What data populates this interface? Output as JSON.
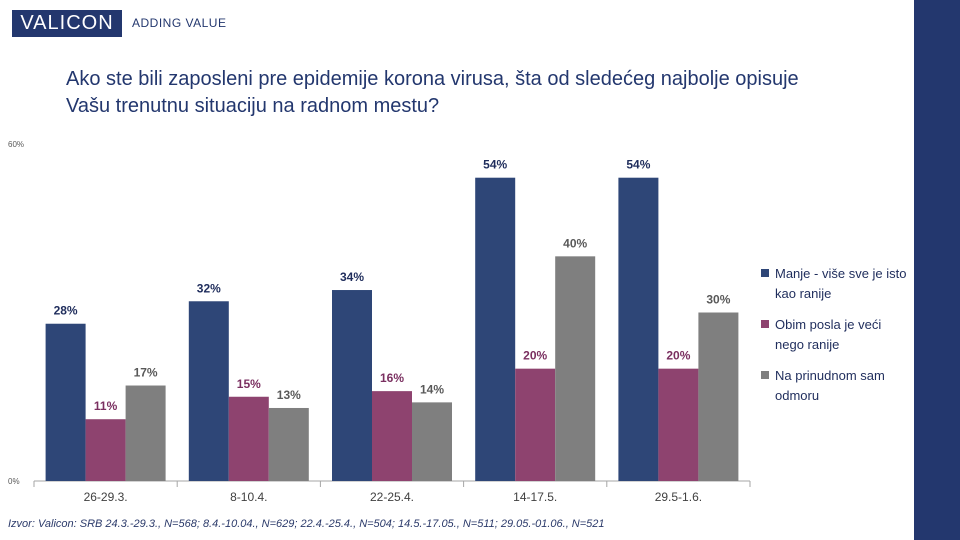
{
  "header": {
    "brand": "VALICON",
    "tagline": "ADDING VALUE"
  },
  "title_lines": [
    "Ako ste bili zaposleni pre epidemije korona virusa, šta od sledećeg najbolje opisuje",
    "Vašu trenutnu situaciju na radnom mestu?"
  ],
  "source": "Izvor: Valicon: SRB 24.3.-29.3., N=568; 8.4.-10.04., N=629; 22.4.-25.4., N=504; 14.5.-17.05., N=511; 29.05.-01.06., N=521",
  "colors": {
    "brand": "#23376e",
    "series": [
      "#2e4677",
      "#8e436f",
      "#7f7f7f"
    ],
    "label": [
      "#1f2d5c",
      "#7a2f60",
      "#595959"
    ]
  },
  "chart_data": {
    "type": "bar",
    "categories": [
      "26-29.3.",
      "8-10.4.",
      "22-25.4.",
      "14-17.5.",
      "29.5-1.6."
    ],
    "series": [
      {
        "name": "Manje - više sve je isto kao ranije",
        "values": [
          28,
          32,
          34,
          54,
          54
        ],
        "labels": [
          "28%",
          "32%",
          "34%",
          "54%",
          "54%"
        ]
      },
      {
        "name": "Obim posla je veći nego ranije",
        "values": [
          11,
          15,
          16,
          20,
          20
        ],
        "labels": [
          "11%",
          "15%",
          "16%",
          "20%",
          "20%"
        ]
      },
      {
        "name": "Na prinudnom sam odmoru",
        "values": [
          17,
          13,
          14,
          40,
          30
        ],
        "labels": [
          "17%",
          "13%",
          "14%",
          "40%",
          "30%"
        ]
      }
    ],
    "ylim": [
      0,
      60
    ],
    "yticks": [
      "0%",
      "60%"
    ],
    "grid": false,
    "legend_position": "right"
  }
}
